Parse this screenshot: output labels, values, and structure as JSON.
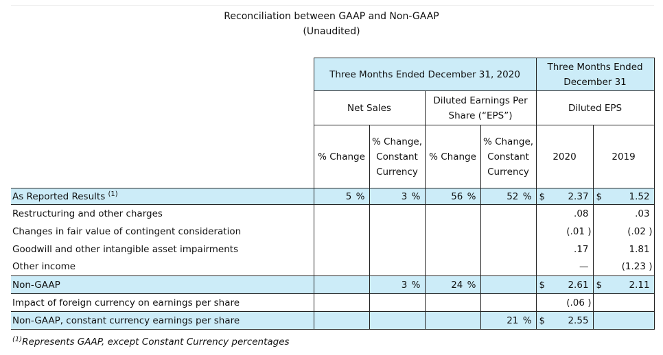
{
  "title": {
    "line1": "Reconciliation between GAAP and Non-GAAP",
    "line2": "(Unaudited)"
  },
  "header": {
    "group1": "Three Months Ended December 31, 2020",
    "group2": "Three Months Ended December 31",
    "net_sales": "Net Sales",
    "diluted_eps_per_share": "Diluted Earnings Per Share (“EPS”)",
    "diluted_eps": "Diluted EPS",
    "pct_change": "% Change",
    "pct_change_cc": "% Change, Constant Currency",
    "pct_change_eps": "% Change",
    "pct_change_cc_eps": "% Change, Constant Currency",
    "y2020": "2020",
    "y2019": "2019"
  },
  "rows": [
    {
      "label": "As Reported Results",
      "sup": "(1)",
      "ns_pct": "5",
      "ns_cc": "3",
      "eps_pct": "56",
      "eps_cc": "52",
      "d2020": "$",
      "v2020": "2.37",
      "d2019": "$",
      "v2019": "1.52"
    },
    {
      "label": "Restructuring and other charges",
      "v2020": ".08",
      "v2019": ".03"
    },
    {
      "label": "Changes in fair value of contingent consideration",
      "v2020": "(.01",
      "v2019": "(.02"
    },
    {
      "label": "Goodwill and other intangible asset impairments",
      "v2020": ".17",
      "v2019": "1.81"
    },
    {
      "label": "Other income",
      "v2020": "—",
      "v2019": "(1.23"
    },
    {
      "label": "Non-GAAP",
      "ns_cc": "3",
      "eps_pct": "24",
      "d2020": "$",
      "v2020": "2.61",
      "d2019": "$",
      "v2019": "2.11"
    },
    {
      "label": "Impact of foreign currency on earnings per share",
      "v2020": "(.06"
    },
    {
      "label": "Non-GAAP, constant currency earnings per share",
      "eps_cc": "21",
      "d2020": "$",
      "v2020": "2.55"
    }
  ],
  "pct_sign": "%",
  "paren_close": ")",
  "footnote": {
    "sup": "(1)",
    "text": "Represents GAAP, except Constant Currency percentages"
  }
}
